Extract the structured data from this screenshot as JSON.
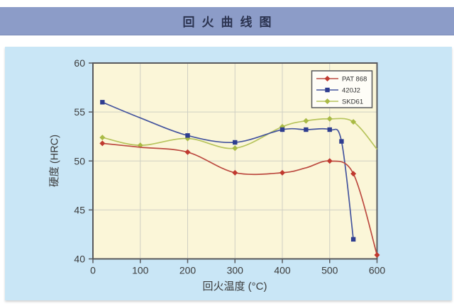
{
  "header": {
    "title": "回火曲线图"
  },
  "colors": {
    "header_bg": "#8c9cc8",
    "header_text": "#2b3350",
    "panel_bg": "#c9e6f6",
    "plot_bg": "#fbf6d8",
    "grid": "#cfcfc3",
    "axis": "#58595c",
    "tick_text": "#3c3c3c",
    "legend_bg": "#fefdf7",
    "legend_border": "#55565a",
    "legend_text": "#333333"
  },
  "chart_data": {
    "type": "line",
    "title": "回火曲线图",
    "xlabel": "回火温度 (°C)",
    "ylabel": "硬度 (HRC)",
    "xlim": [
      0,
      600
    ],
    "ylim": [
      40,
      60
    ],
    "x_ticks": [
      0,
      100,
      200,
      300,
      400,
      500,
      600
    ],
    "y_ticks": [
      40,
      45,
      50,
      55,
      60
    ],
    "grid": true,
    "legend_position": "top-right",
    "series": [
      {
        "name": "PAT 868",
        "color": "#bc4a40",
        "marker_fill": "#c0392f",
        "marker": "diamond",
        "points": [
          [
            20,
            51.8
          ],
          [
            100,
            51.4
          ],
          [
            200,
            50.9
          ],
          [
            300,
            48.8
          ],
          [
            400,
            48.8
          ],
          [
            450,
            49.3
          ],
          [
            500,
            50.0
          ],
          [
            550,
            48.7
          ],
          [
            600,
            40.4
          ]
        ],
        "marker_at": [
          20,
          200,
          300,
          400,
          500,
          550,
          600
        ]
      },
      {
        "name": "420J2",
        "color": "#44549e",
        "marker_fill": "#2e3d90",
        "marker": "square",
        "points": [
          [
            20,
            56.0
          ],
          [
            100,
            54.4
          ],
          [
            200,
            52.6
          ],
          [
            300,
            51.9
          ],
          [
            400,
            53.2
          ],
          [
            450,
            53.2
          ],
          [
            500,
            53.2
          ],
          [
            525,
            52.0
          ],
          [
            550,
            42.0
          ]
        ],
        "marker_at": [
          20,
          200,
          300,
          400,
          450,
          500,
          525,
          550
        ]
      },
      {
        "name": "SKD61",
        "color": "#b7c45c",
        "marker_fill": "#a9ba45",
        "marker": "diamond",
        "points": [
          [
            20,
            52.4
          ],
          [
            100,
            51.6
          ],
          [
            200,
            52.3
          ],
          [
            300,
            51.3
          ],
          [
            400,
            53.5
          ],
          [
            450,
            54.1
          ],
          [
            500,
            54.3
          ],
          [
            550,
            54.0
          ],
          [
            600,
            51.2
          ]
        ],
        "marker_at": [
          20,
          100,
          200,
          300,
          400,
          450,
          500,
          550
        ]
      }
    ]
  }
}
